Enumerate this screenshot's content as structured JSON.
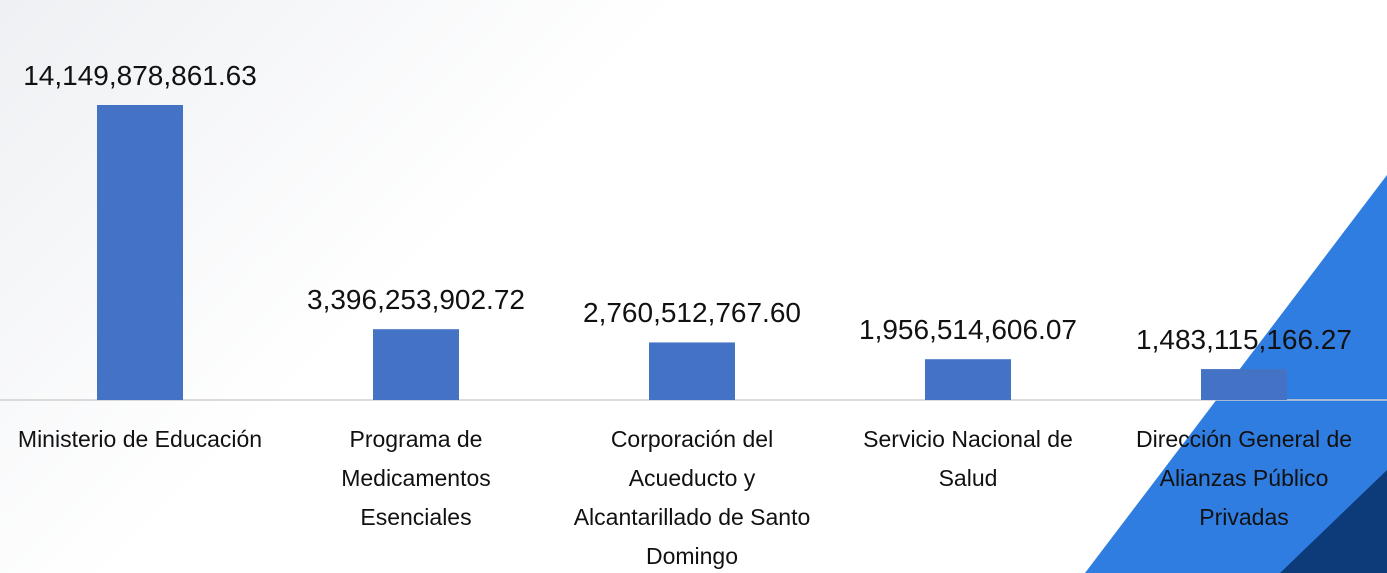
{
  "chart_data": {
    "type": "bar",
    "categories": [
      "Ministerio de Educación",
      "Programa de Medicamentos Esenciales",
      "Corporación del Acueducto y Alcantarillado de Santo Domingo",
      "Servicio Nacional de Salud",
      "Dirección General de Alianzas Público Privadas"
    ],
    "values": [
      14149878861.63,
      3396253902.72,
      2760512767.6,
      1956514606.07,
      1483115166.27
    ],
    "value_labels": [
      "14,149,878,861.63",
      "3,396,253,902.72",
      "2,760,512,767.60",
      "1,956,514,606.07",
      "1,483,115,166.27"
    ],
    "color": "#4472c4"
  }
}
